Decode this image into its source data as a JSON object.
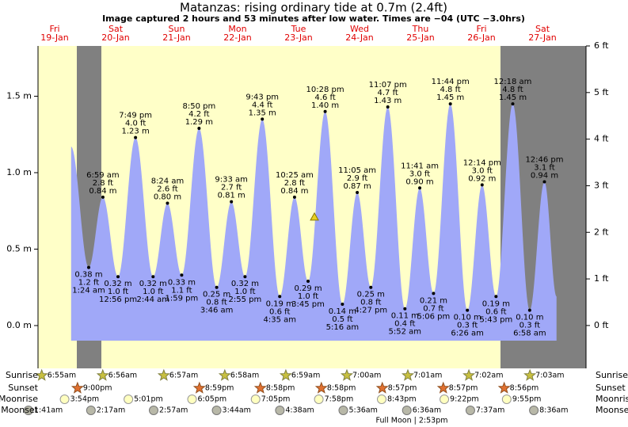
{
  "chart_data": {
    "type": "area",
    "title": "Matanzas: rising  ordinary tide at 0.7m (2.4ft)",
    "subtitle": "Image captured 2 hours and 53 minutes after low water. Times are −04 (UTC −3.0hrs)",
    "days": [
      {
        "name": "Fri",
        "date": "19-Jan"
      },
      {
        "name": "Sat",
        "date": "20-Jan"
      },
      {
        "name": "Sun",
        "date": "21-Jan"
      },
      {
        "name": "Mon",
        "date": "22-Jan"
      },
      {
        "name": "Tue",
        "date": "23-Jan"
      },
      {
        "name": "Wed",
        "date": "24-Jan"
      },
      {
        "name": "Thu",
        "date": "25-Jan"
      },
      {
        "name": "Fri",
        "date": "26-Jan"
      },
      {
        "name": "Sat",
        "date": "27-Jan"
      }
    ],
    "xlim": [
      0.227,
      9.214
    ],
    "ylim": [
      -0.28,
      1.8288
    ],
    "yticks": [
      {
        "value": 0,
        "label": "0.0 m"
      },
      {
        "value": 0.5,
        "label": "0.5 m"
      },
      {
        "value": 1,
        "label": "1.0 m"
      },
      {
        "value": 1.5,
        "label": "1.5 m"
      }
    ],
    "y2lim": [
      -0.92,
      6
    ],
    "y2ticks": [
      {
        "value": 0,
        "label": "0 ft"
      },
      {
        "value": 1,
        "label": "1 ft"
      },
      {
        "value": 2,
        "label": "2 ft"
      },
      {
        "value": 3,
        "label": "3 ft"
      },
      {
        "value": 4,
        "label": "4 ft"
      },
      {
        "value": 5,
        "label": "5 ft"
      },
      {
        "value": 6,
        "label": "6 ft"
      }
    ],
    "color": "#a0a8f8",
    "start": {
      "x": 0.77,
      "value": 1.17
    },
    "end": {
      "x": 8.73,
      "value": 0.19
    },
    "now": {
      "x": 4.76,
      "value": 0.71
    },
    "extremes": {
      "x": [
        1.058,
        1.291,
        1.539,
        1.826,
        2.114,
        2.35,
        2.583,
        2.868,
        3.157,
        3.398,
        3.622,
        3.905,
        4.191,
        4.434,
        4.656,
        4.936,
        5.219,
        5.462,
        5.685,
        5.963,
        6.244,
        6.487,
        6.713,
        6.989,
        7.268,
        7.51,
        7.738,
        8.0125,
        8.29,
        8.532
      ],
      "values": [
        0.38,
        0.84,
        0.32,
        1.23,
        0.32,
        0.8,
        0.33,
        1.29,
        0.25,
        0.81,
        0.32,
        1.35,
        0.19,
        0.84,
        0.29,
        1.4,
        0.14,
        0.87,
        0.25,
        1.43,
        0.11,
        0.9,
        0.21,
        1.45,
        0.1,
        0.92,
        0.19,
        1.45,
        0.1,
        0.94
      ],
      "value_labels": [
        "0.38 m",
        "0.84 m",
        "0.32 m",
        "1.23 m",
        "0.32 m",
        "0.80 m",
        "0.33 m",
        "1.29 m",
        "0.25 m",
        "0.81 m",
        "0.32 m",
        "1.35 m",
        "0.19 m",
        "0.84 m",
        "0.29 m",
        "1.40 m",
        "0.14 m",
        "0.87 m",
        "0.25 m",
        "1.43 m",
        "0.11 m",
        "0.90 m",
        "0.21 m",
        "1.45 m",
        "0.10 m",
        "0.92 m",
        "0.19 m",
        "1.45 m",
        "0.10 m",
        "0.94 m"
      ],
      "ft": [
        "1.2 ft",
        "2.8 ft",
        "1.0 ft",
        "4.0 ft",
        "1.0 ft",
        "2.6 ft",
        "1.1 ft",
        "4.2 ft",
        "0.8 ft",
        "2.7 ft",
        "1.0 ft",
        "4.4 ft",
        "0.6 ft",
        "2.8 ft",
        "1.0 ft",
        "4.6 ft",
        "0.5 ft",
        "2.9 ft",
        "0.8 ft",
        "4.7 ft",
        "0.4 ft",
        "3.0 ft",
        "0.7 ft",
        "4.8 ft",
        "0.3 ft",
        "3.0 ft",
        "0.6 ft",
        "4.8 ft",
        "0.3 ft",
        "3.1 ft"
      ],
      "times": [
        "1:24 am",
        "6:59 am",
        "12:56 pm",
        "7:49 pm",
        "2:44 am",
        "8:24 am",
        "1:59 pm",
        "8:50 pm",
        "3:46 am",
        "9:33 am",
        "2:55 pm",
        "9:43 pm",
        "4:35 am",
        "10:25 am",
        "3:45 pm",
        "10:28 pm",
        "5:16 am",
        "11:05 am",
        "4:27 pm",
        "11:07 pm",
        "5:52 am",
        "11:41 am",
        "5:06 pm",
        "11:44 pm",
        "6:26 am",
        "12:14 pm",
        "5:43 pm",
        "12:18 am",
        "6:58 am",
        "12:46 pm"
      ]
    },
    "rows": [
      {
        "label": "Sunrise",
        "x": [
          0.288,
          1.289,
          2.29,
          3.29,
          4.291,
          5.292,
          6.292,
          7.293,
          8.294
        ],
        "times": [
          "6:55am",
          "6:56am",
          "6:57am",
          "6:58am",
          "6:59am",
          "7:00am",
          "7:01am",
          "7:02am",
          "7:03am"
        ]
      },
      {
        "label": "Sunset",
        "x": [
          0.875,
          2.874,
          3.874,
          4.874,
          5.873,
          6.873,
          7.872
        ],
        "times": [
          "9:00pm",
          "8:59pm",
          "8:58pm",
          "8:58pm",
          "8:57pm",
          "8:57pm",
          "8:56pm"
        ]
      },
      {
        "label": "Moonrise",
        "x": [
          0.663,
          1.709,
          2.753,
          3.795,
          4.832,
          5.863,
          6.89,
          7.913
        ],
        "times": [
          "3:54pm",
          "5:01pm",
          "6:05pm",
          "7:05pm",
          "7:58pm",
          "8:43pm",
          "9:22pm",
          "9:55pm"
        ]
      },
      {
        "label": "Moonset",
        "x": [
          0.07,
          1.095,
          2.123,
          3.156,
          4.193,
          5.233,
          6.275,
          7.317,
          8.358
        ],
        "times": [
          "1:41am",
          "2:17am",
          "2:57am",
          "3:44am",
          "4:38am",
          "5:36am",
          "6:36am",
          "7:37am",
          "8:36am"
        ]
      }
    ],
    "moon_phase": "Full Moon | 2:53pm"
  }
}
